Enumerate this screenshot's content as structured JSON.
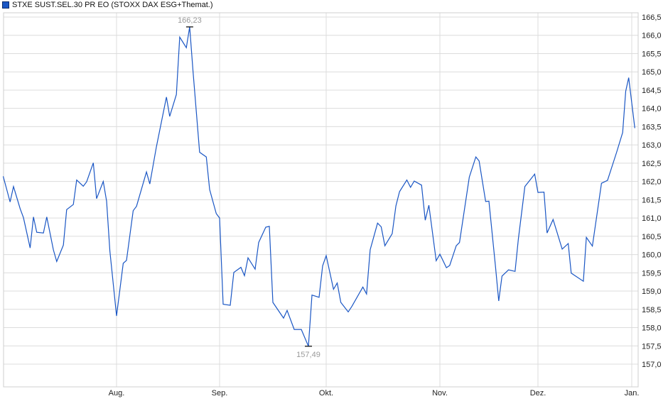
{
  "chart_data": {
    "type": "line",
    "legend": {
      "label": "STXE SUST.SEL.30 PR EO (STOXX DAX ESG+Themat.)",
      "placement": "top-left"
    },
    "title": "",
    "xlabel": "",
    "ylabel": "",
    "ylim": [
      156.5,
      166.7
    ],
    "grid": true,
    "y_axis_side": "right",
    "y_ticks": [
      "157,0",
      "157,5",
      "158,0",
      "158,5",
      "159,0",
      "159,5",
      "160,0",
      "160,5",
      "161,0",
      "161,5",
      "162,0",
      "162,5",
      "163,0",
      "163,5",
      "164,0",
      "164,5",
      "165,0",
      "165,5",
      "166,0",
      "166,5"
    ],
    "x_ticks": [
      {
        "label": "Aug.",
        "date": "08-01"
      },
      {
        "label": "Sep.",
        "date": "09-01"
      },
      {
        "label": "Okt.",
        "date": "10-01"
      },
      {
        "label": "Nov.",
        "date": "11-01"
      },
      {
        "label": "Dez.",
        "date": "12-01"
      },
      {
        "label": "Jan.",
        "date": "01-01"
      }
    ],
    "annotations": {
      "max": {
        "label": "166,23",
        "date": "08-23",
        "value": 166.23
      },
      "min": {
        "label": "157,49",
        "date": "09-26",
        "value": 157.49
      }
    },
    "series": [
      {
        "color": "#1a56c4",
        "x": [
          "06-28",
          "06-30",
          "07-01",
          "07-03",
          "07-04",
          "07-06",
          "07-07",
          "07-08",
          "07-10",
          "07-11",
          "07-13",
          "07-14",
          "07-16",
          "07-17",
          "07-19",
          "07-20",
          "07-22",
          "07-23",
          "07-25",
          "07-26",
          "07-28",
          "07-29",
          "07-30",
          "08-01",
          "08-03",
          "08-04",
          "08-06",
          "08-07",
          "08-10",
          "08-11",
          "08-13",
          "08-16",
          "08-17",
          "08-19",
          "08-20",
          "08-22",
          "08-23",
          "08-24",
          "08-26",
          "08-28",
          "08-29",
          "08-31",
          "09-01",
          "09-02",
          "09-04",
          "09-05",
          "09-07",
          "09-08",
          "09-09",
          "09-11",
          "09-12",
          "09-14",
          "09-15",
          "09-16",
          "09-19",
          "09-20",
          "09-22",
          "09-24",
          "09-26",
          "09-27",
          "09-29",
          "09-30",
          "10-01",
          "10-03",
          "10-04",
          "10-05",
          "10-07",
          "10-08",
          "10-11",
          "10-12",
          "10-13",
          "10-15",
          "10-16",
          "10-17",
          "10-19",
          "10-20",
          "10-21",
          "10-23",
          "10-24",
          "10-25",
          "10-27",
          "10-28",
          "10-29",
          "10-31",
          "11-01",
          "11-03",
          "11-04",
          "11-06",
          "11-07",
          "11-10",
          "11-12",
          "11-13",
          "11-15",
          "11-16",
          "11-18",
          "11-19",
          "11-20",
          "11-22",
          "11-24",
          "11-25",
          "11-27",
          "11-30",
          "12-01",
          "12-03",
          "12-04",
          "12-06",
          "12-09",
          "12-11",
          "12-12",
          "12-16",
          "12-17",
          "12-19",
          "12-22",
          "12-24",
          "12-27",
          "12-29",
          "12-30",
          "12-31",
          "01-02"
        ],
        "values": [
          162.14,
          161.44,
          161.86,
          161.25,
          161.01,
          160.18,
          161.03,
          160.61,
          160.59,
          161.03,
          160.13,
          159.81,
          160.26,
          161.23,
          161.37,
          162.04,
          161.87,
          161.99,
          162.51,
          161.53,
          162.0,
          161.46,
          160.1,
          158.32,
          159.76,
          159.84,
          161.2,
          161.32,
          162.26,
          161.93,
          162.95,
          164.31,
          163.78,
          164.38,
          165.95,
          165.66,
          166.23,
          165.02,
          162.8,
          162.67,
          161.78,
          161.12,
          161.0,
          158.64,
          158.61,
          159.51,
          159.65,
          159.42,
          159.91,
          159.6,
          160.33,
          160.75,
          160.77,
          158.69,
          158.26,
          158.47,
          157.95,
          157.95,
          157.49,
          158.89,
          158.83,
          159.69,
          159.97,
          159.05,
          159.22,
          158.69,
          158.43,
          158.58,
          159.11,
          158.92,
          160.13,
          160.86,
          160.76,
          160.24,
          160.57,
          161.33,
          161.72,
          162.04,
          161.84,
          162.01,
          161.9,
          160.94,
          161.35,
          159.83,
          160.01,
          159.64,
          159.7,
          160.24,
          160.33,
          162.12,
          162.67,
          162.56,
          161.45,
          161.46,
          159.68,
          158.73,
          159.41,
          159.58,
          159.54,
          160.42,
          161.86,
          162.2,
          161.7,
          161.71,
          160.59,
          160.96,
          160.15,
          160.3,
          159.49,
          159.27,
          160.47,
          160.23,
          161.95,
          162.03,
          162.8,
          163.34,
          164.47,
          164.84,
          163.46
        ]
      }
    ]
  }
}
